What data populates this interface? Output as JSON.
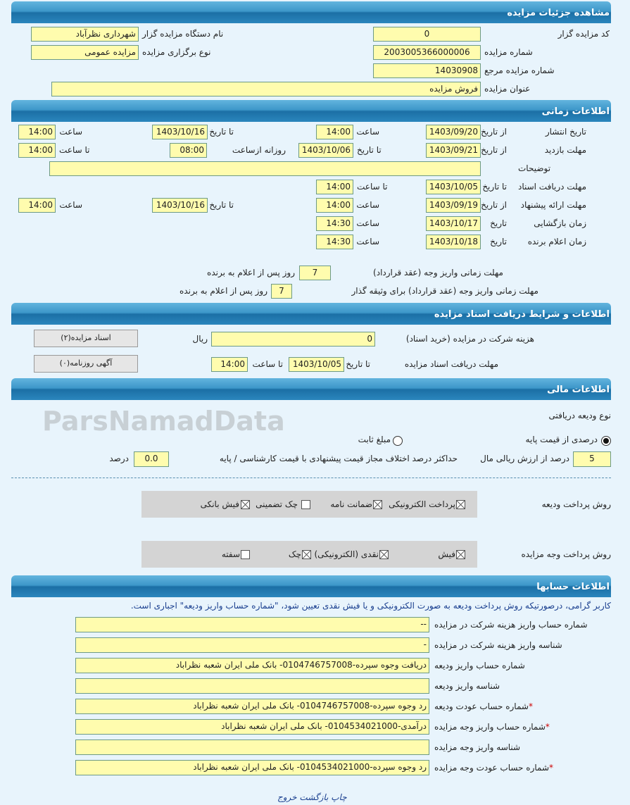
{
  "header": {
    "title": "مشاهده جزئیات مزایده"
  },
  "details": {
    "code_label": "کد مزایده گزار",
    "code": "0",
    "org_label": "نام دستگاه مزایده گزار",
    "org": "شهرداری نظرآباد",
    "number_label": "شماره مزایده",
    "number": "2003005366000006",
    "type_label": "نوع برگزاری مزایده",
    "type": "مزایده عمومی",
    "ref_label": "شماره مزایده مرجع",
    "ref": "14030908",
    "title_label": "عنوان مزایده",
    "title": "فروش مزایده"
  },
  "timing": {
    "title": "اطلاعات زمانی",
    "publish": {
      "label": "تاریخ انتشار",
      "from_label": "از تاریخ",
      "from": "1403/09/20",
      "time_label": "ساعت",
      "time": "14:00",
      "to_label": "تا تاریخ",
      "to": "1403/10/16",
      "time2_label": "ساعت",
      "time2": "14:00"
    },
    "visit": {
      "label": "مهلت بازدید",
      "from_label": "از تاریخ",
      "from": "1403/09/21",
      "to_label": "تا تاریخ",
      "to": "1403/10/06",
      "daily_label": "روزانه ازساعت",
      "daily": "08:00",
      "until_label": "تا ساعت",
      "until": "14:00"
    },
    "notes_label": "توضیحات",
    "notes": "",
    "docs": {
      "label": "مهلت دریافت اسناد",
      "to_label": "تا تاریخ",
      "to": "1403/10/05",
      "time_label": "تا ساعت",
      "time": "14:00"
    },
    "offer": {
      "label": "مهلت ارائه پیشنهاد",
      "from_label": "از تاریخ",
      "from": "1403/09/19",
      "time_label": "ساعت",
      "time": "14:00",
      "to_label": "تا تاریخ",
      "to": "1403/10/16",
      "time2_label": "ساعت",
      "time2": "14:00"
    },
    "opening": {
      "label": "زمان بازگشایی",
      "date_label": "تاریخ",
      "date": "1403/10/17",
      "time_label": "ساعت",
      "time": "14:30"
    },
    "winner": {
      "label": "زمان اعلام برنده",
      "date_label": "تاریخ",
      "date": "1403/10/18",
      "time_label": "ساعت",
      "time": "14:30"
    },
    "pay1": {
      "label": "مهلت زمانی واریز وجه (عقد قرارداد)",
      "value": "7",
      "suffix": "روز پس از اعلام به برنده"
    },
    "pay2": {
      "label": "مهلت زمانی واریز وجه (عقد قرارداد) برای وثیقه گذار",
      "value": "7",
      "suffix": "روز پس از اعلام به برنده"
    }
  },
  "documents": {
    "title": "اطلاعات و شرایط دریافت اسناد مزایده",
    "fee_label": "هزینه شرکت در مزایده (خرید اسناد)",
    "fee": "0",
    "currency": "ریال",
    "deadline_label": "مهلت دریافت اسناد مزایده",
    "to_label": "تا تاریخ",
    "to": "1403/10/05",
    "time_label": "تا ساعت",
    "time": "14:00",
    "docs_button": "اسناد مزایده(۲)",
    "ad_button": "آگهی روزنامه(۰)"
  },
  "financial": {
    "title": "اطلاعات مالی",
    "deposit_type_label": "نوع ودیعه دریافتی",
    "radio_percent": "درصدی از قیمت پایه",
    "radio_fixed": "مبلغ ثابت",
    "selected": "percent",
    "percent": "5",
    "percent_suffix": "درصد از ارزش ریالی مال",
    "max_diff_label": "حداکثر درصد اختلاف مجاز قیمت پیشنهادی با قیمت کارشناسی / پایه",
    "max_diff": "0.0",
    "max_diff_suffix": "درصد",
    "deposit_method_label": "روش پرداخت ودیعه",
    "deposit_methods": [
      {
        "label": "پرداخت الکترونیکی",
        "checked": true
      },
      {
        "label": "ضمانت نامه",
        "checked": true
      },
      {
        "label": "چک تضمینی",
        "checked": false
      },
      {
        "label": "فیش بانکی",
        "checked": true
      }
    ],
    "payment_method_label": "روش پرداخت وجه مزایده",
    "payment_methods": [
      {
        "label": "فیش",
        "checked": true
      },
      {
        "label": "نقدی (الکترونیکی)",
        "checked": true
      },
      {
        "label": "چک",
        "checked": true
      },
      {
        "label": "سفته",
        "checked": false
      }
    ]
  },
  "accounts": {
    "title": "اطلاعات حسابها",
    "notice": "کاربر گرامی، درصورتیکه روش پرداخت ودیعه به صورت الکترونیکی و یا فیش نقدی تعیین شود، \"شماره حساب واریز ودیعه\" اجباری است.",
    "rows": [
      {
        "label": "شماره حساب واریز هزینه شرکت در مزایده",
        "value": "--",
        "required": ""
      },
      {
        "label": "شناسه واریز هزینه شرکت در مزایده",
        "value": "-",
        "required": ""
      },
      {
        "label": "شماره حساب واریز ودیعه",
        "value": "دریافت وجوه سپرده-0104746757008- بانک ملی ایران شعبه نظراباد",
        "required": ""
      },
      {
        "label": "شناسه واریز ودیعه",
        "value": "",
        "required": ""
      },
      {
        "label": "شماره حساب عودت ودیعه",
        "value": "رد وجوه سپرده-0104746757008- بانک ملی ایران شعبه نظراباد",
        "required": "*"
      },
      {
        "label": "شماره حساب واریز وجه مزایده",
        "value": "درآمدی-0104534021000- بانک ملی ایران شعبه نظراباد",
        "required": "*"
      },
      {
        "label": "شناسه واریز وجه مزایده",
        "value": "",
        "required": ""
      },
      {
        "label": "شماره حساب عودت وجه مزایده",
        "value": "رد وجوه سپرده-0104534021000- بانک ملی ایران شعبه نظراباد",
        "required": "*"
      }
    ]
  },
  "footer": {
    "print": "چاپ",
    "back": "بازگشت",
    "exit": "خروج"
  },
  "watermark": "ParsNamadData",
  "colors": {
    "field_bg": "#fffcae",
    "header": "#1b6fa5",
    "page_bg": "#e8f4fc",
    "notice": "#1a3f8f"
  }
}
